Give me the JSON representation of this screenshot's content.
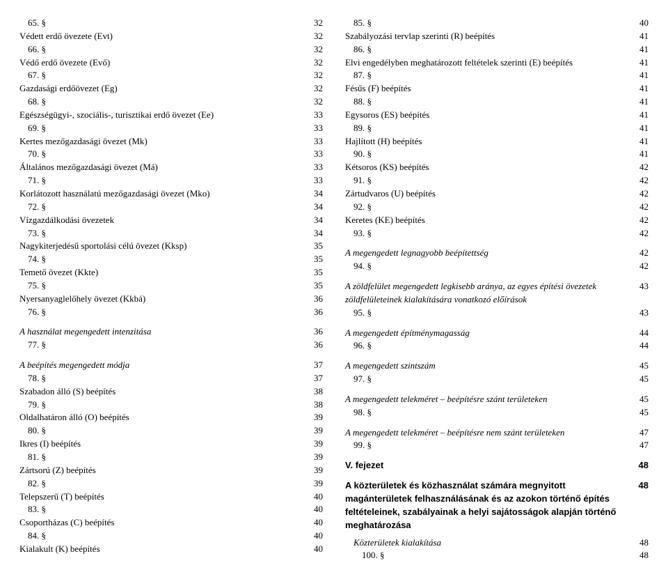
{
  "left": [
    {
      "label": "65. §",
      "page": "32",
      "indent": true
    },
    {
      "label": "Védett erdő övezete (Evt)",
      "page": "32"
    },
    {
      "label": "66. §",
      "page": "32",
      "indent": true
    },
    {
      "label": "Védő erdő övezete (Evő)",
      "page": "32"
    },
    {
      "label": "67. §",
      "page": "32",
      "indent": true
    },
    {
      "label": "Gazdasági erdőövezet (Eg)",
      "page": "32"
    },
    {
      "label": "68. §",
      "page": "32",
      "indent": true
    },
    {
      "label": "Egészségügyi-, szociális-, turisztikai erdő övezet (Ee)",
      "page": "33"
    },
    {
      "label": "69. §",
      "page": "33",
      "indent": true
    },
    {
      "label": "Kertes mezőgazdasági övezet (Mk)",
      "page": "33"
    },
    {
      "label": "70. §",
      "page": "33",
      "indent": true
    },
    {
      "label": "Általános mezőgazdasági övezet (Má)",
      "page": "33"
    },
    {
      "label": "71. §",
      "page": "33",
      "indent": true
    },
    {
      "label": "Korlátozott használatú mezőgazdasági övezet (Mko)",
      "page": "34"
    },
    {
      "label": "72. §",
      "page": "34",
      "indent": true
    },
    {
      "label": "Vízgazdálkodási övezetek",
      "page": "34"
    },
    {
      "label": "73. §",
      "page": "34",
      "indent": true
    },
    {
      "label": "Nagykiterjedésű sportolási célú övezet (Kksp)",
      "page": "35"
    },
    {
      "label": "74. §",
      "page": "35",
      "indent": true
    },
    {
      "label": "Temető övezet (Kkte)",
      "page": "35"
    },
    {
      "label": "75. §",
      "page": "35",
      "indent": true
    },
    {
      "label": "Nyersanyaglelőhely övezet (Kkbá)",
      "page": "36"
    },
    {
      "label": "76. §",
      "page": "36",
      "indent": true
    },
    {
      "spacer": true
    },
    {
      "label": "A használat megengedett intenzitása",
      "page": "36",
      "italic": true
    },
    {
      "label": "77. §",
      "page": "36",
      "indent": true
    },
    {
      "spacer": true
    },
    {
      "label": "A beépítés megengedett módja",
      "page": "37",
      "italic": true
    },
    {
      "label": "78. §",
      "page": "37",
      "indent": true
    },
    {
      "label": "Szabadon álló (S) beépítés",
      "page": "38"
    },
    {
      "label": "79. §",
      "page": "38",
      "indent": true
    },
    {
      "label": "Oldalhatáron álló (O) beépítés",
      "page": "39"
    },
    {
      "label": "80. §",
      "page": "39",
      "indent": true
    },
    {
      "label": "Ikres (I) beépítés",
      "page": "39"
    },
    {
      "label": "81. §",
      "page": "39",
      "indent": true
    },
    {
      "label": "Zártsorú (Z) beépítés",
      "page": "39"
    },
    {
      "label": "82. §",
      "page": "39",
      "indent": true
    },
    {
      "label": "Telepszerű (T) beépítés",
      "page": "40"
    },
    {
      "label": "83. §",
      "page": "40",
      "indent": true
    },
    {
      "label": "Csoportházas (C) beépítés",
      "page": "40"
    },
    {
      "label": "84. §",
      "page": "40",
      "indent": true
    },
    {
      "label": "Kialakult (K) beépítés",
      "page": "40"
    }
  ],
  "right": [
    {
      "label": "85. §",
      "page": "40",
      "indent": true
    },
    {
      "label": "Szabályozási tervlap szerinti (R) beépítés",
      "page": "41"
    },
    {
      "label": "86. §",
      "page": "41",
      "indent": true
    },
    {
      "label": "Elvi engedélyben meghatározott feltételek szerinti (E)  beépítés",
      "page": "41"
    },
    {
      "label": "87. §",
      "page": "41",
      "indent": true
    },
    {
      "label": "Fésűs (F) beépítés",
      "page": "41"
    },
    {
      "label": "88. §",
      "page": "41",
      "indent": true
    },
    {
      "label": "Egysoros (ES) beépítés",
      "page": "41"
    },
    {
      "label": "89. §",
      "page": "41",
      "indent": true
    },
    {
      "label": "Hajlított (H) beépítés",
      "page": "41"
    },
    {
      "label": "90. §",
      "page": "41",
      "indent": true
    },
    {
      "label": "Kétsoros (KS) beépítés",
      "page": "42"
    },
    {
      "label": "91. §",
      "page": "42",
      "indent": true
    },
    {
      "label": "Zártudvaros (U) beépítés",
      "page": "42"
    },
    {
      "label": "92. §",
      "page": "42",
      "indent": true
    },
    {
      "label": "Keretes (KE) beépítés",
      "page": "42"
    },
    {
      "label": "93. §",
      "page": "42",
      "indent": true
    },
    {
      "spacer": true
    },
    {
      "label": "A megengedett legnagyobb beépítettség",
      "page": "42",
      "italic": true
    },
    {
      "label": "94. §",
      "page": "42",
      "indent": true
    },
    {
      "spacer": true
    },
    {
      "label": "A zöldfelület megengedett legkisebb aránya, az egyes építési övezetek zöldfelületeinek kialakítására vonatkozó előírások",
      "page": "43",
      "italic": true
    },
    {
      "label": "95. §",
      "page": "43",
      "indent": true
    },
    {
      "spacer": true
    },
    {
      "label": "A megengedett építménymagasság",
      "page": "44",
      "italic": true
    },
    {
      "label": "96. §",
      "page": "44",
      "indent": true
    },
    {
      "spacer": true
    },
    {
      "label": "A megengedett szintszám",
      "page": "45",
      "italic": true
    },
    {
      "label": "97. §",
      "page": "45",
      "indent": true
    },
    {
      "spacer": true
    },
    {
      "label": "A megengedett telekméret – beépítésre szánt területeken",
      "page": "45",
      "italic": true
    },
    {
      "label": "98. §",
      "page": "45",
      "indent": true
    },
    {
      "spacer": true
    },
    {
      "label": "A megengedett telekméret – beépítésre nem szánt területeken",
      "page": "47",
      "italic": true
    },
    {
      "label": "99. §",
      "page": "47",
      "indent": true
    },
    {
      "spacer": true
    },
    {
      "label": "V. fejezet",
      "page": "48",
      "bold": true,
      "sans": true
    },
    {
      "spacer": true
    },
    {
      "label": "A közterületek és közhasználat számára megnyitott magánterületek felhasználásának és az azokon történő építés feltételeinek, szabályainak a helyi sajátosságok alapján történő meghatározása",
      "page": "48",
      "bold": true,
      "sans": true
    },
    {
      "spacer": true,
      "small": true
    },
    {
      "label": "Közterületek kialakítása",
      "page": "48",
      "italic": true,
      "indent": true
    },
    {
      "label": "100. §",
      "page": "48",
      "indent": true,
      "indent2": true
    }
  ]
}
